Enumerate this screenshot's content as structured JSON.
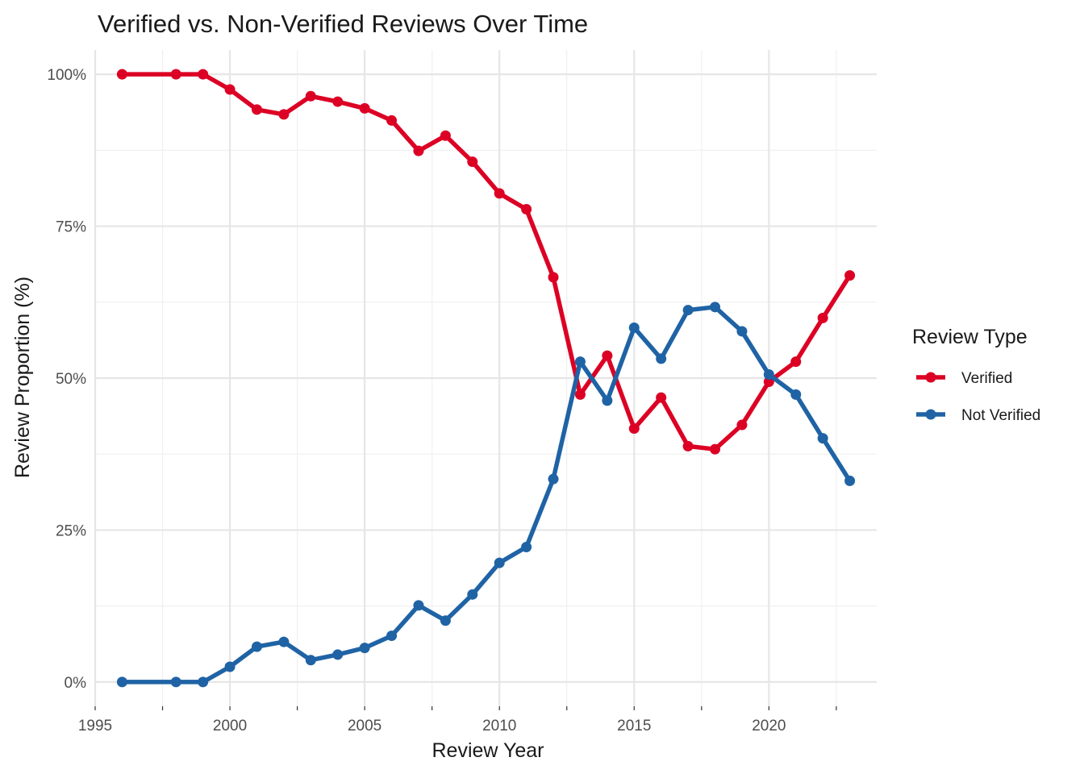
{
  "chart_data": {
    "type": "line",
    "title": "Verified vs. Non-Verified Reviews Over Time",
    "xlabel": "Review Year",
    "ylabel": "Review Proportion (%)",
    "xlim": [
      1995,
      2024
    ],
    "ylim": [
      -0.04,
      1.04
    ],
    "x_ticks": [
      1995,
      2000,
      2005,
      2010,
      2015,
      2020
    ],
    "x_tick_labels": [
      "1995",
      "2000",
      "2005",
      "2010",
      "2015",
      "2020"
    ],
    "y_ticks": [
      0,
      0.25,
      0.5,
      0.75,
      1.0
    ],
    "y_tick_labels": [
      "0%",
      "25%",
      "50%",
      "75%",
      "100%"
    ],
    "grid": true,
    "legend": {
      "title": "Review Type",
      "position": "right"
    },
    "x": [
      1996,
      1998,
      1999,
      2000,
      2001,
      2002,
      2003,
      2004,
      2005,
      2006,
      2007,
      2008,
      2009,
      2010,
      2011,
      2012,
      2013,
      2014,
      2015,
      2016,
      2017,
      2018,
      2019,
      2020,
      2021,
      2022,
      2023
    ],
    "series": [
      {
        "name": "Verified",
        "color": "#dc0024",
        "values": [
          1.0,
          1.0,
          1.0,
          0.975,
          0.942,
          0.934,
          0.964,
          0.955,
          0.944,
          0.924,
          0.874,
          0.899,
          0.856,
          0.804,
          0.778,
          0.666,
          0.473,
          0.537,
          0.417,
          0.468,
          0.388,
          0.383,
          0.423,
          0.494,
          0.527,
          0.599,
          0.669
        ]
      },
      {
        "name": "Not Verified",
        "color": "#1f63a5",
        "values": [
          0.0,
          0.0,
          0.0,
          0.025,
          0.058,
          0.066,
          0.036,
          0.045,
          0.056,
          0.076,
          0.126,
          0.101,
          0.144,
          0.196,
          0.222,
          0.334,
          0.527,
          0.463,
          0.583,
          0.532,
          0.612,
          0.617,
          0.577,
          0.506,
          0.473,
          0.401,
          0.331
        ]
      }
    ]
  }
}
